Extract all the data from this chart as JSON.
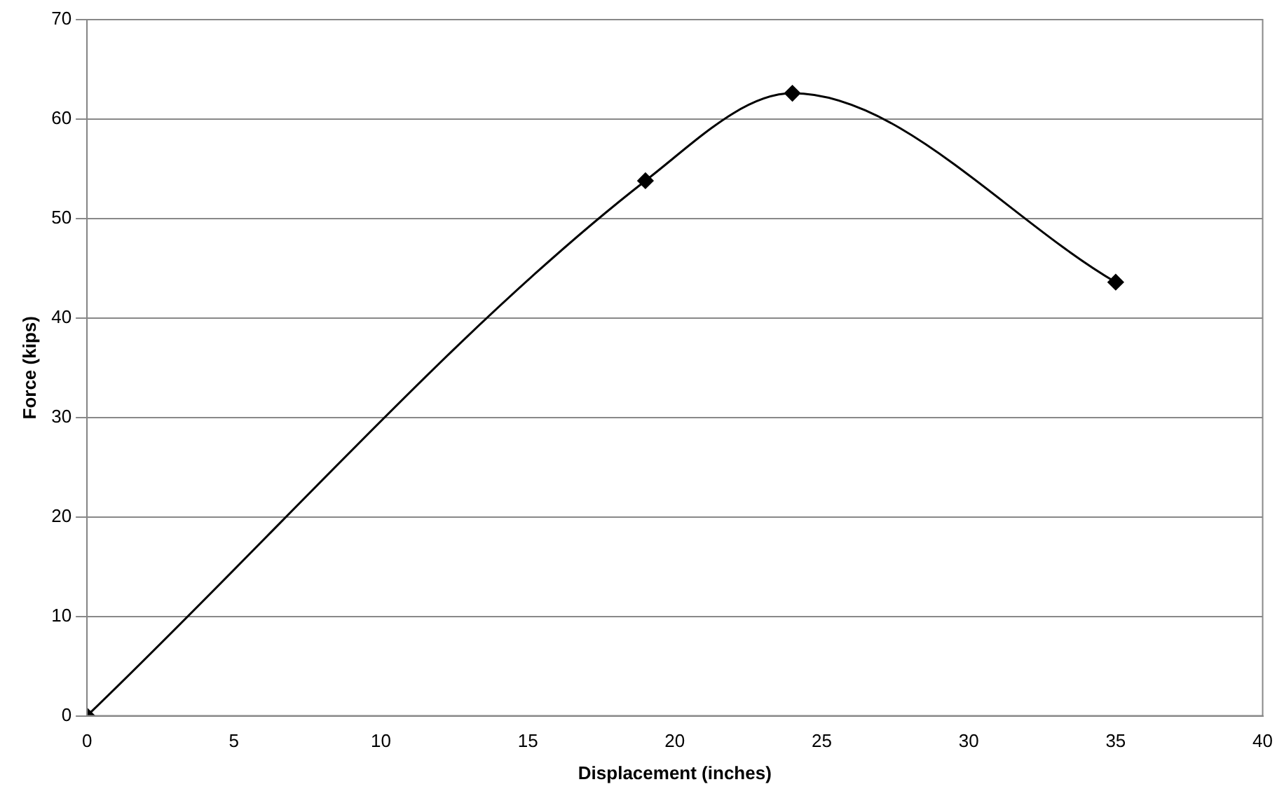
{
  "chart_data": {
    "type": "line",
    "xlabel": "Displacement (inches)",
    "ylabel": "Force (kips)",
    "x": [
      0,
      19,
      24,
      35
    ],
    "series": [
      {
        "color": "#000000",
        "values": [
          0,
          53.8,
          62.6,
          43.6
        ]
      }
    ],
    "xlim": [
      0,
      40
    ],
    "xticks": [
      0,
      5,
      10,
      15,
      20,
      25,
      30,
      35,
      40
    ],
    "ylim": [
      0,
      70
    ],
    "yticks": [
      0,
      10,
      20,
      30,
      40,
      50,
      60,
      70
    ],
    "grid": "y",
    "marker": "diamond",
    "line_style": "solid"
  }
}
